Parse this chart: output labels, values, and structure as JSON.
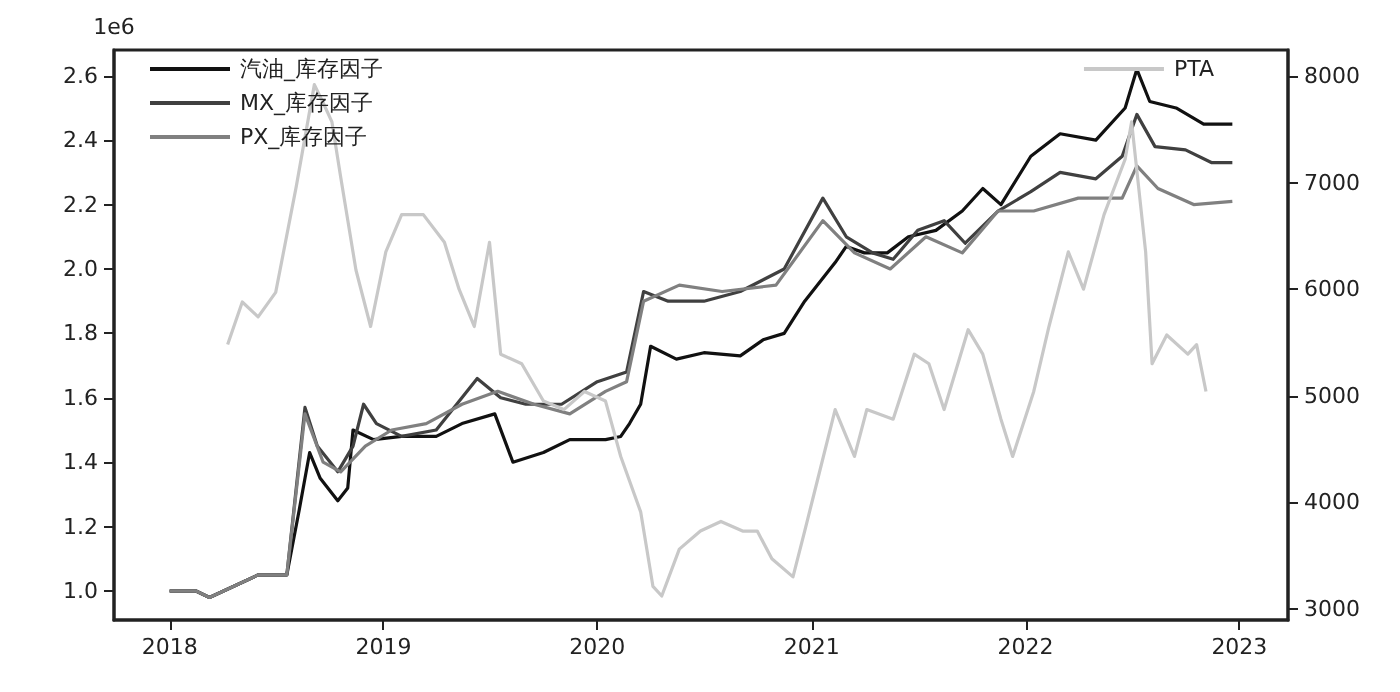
{
  "chart_data": {
    "type": "line",
    "ylabel": "1e6",
    "legend": "top",
    "grid": false,
    "line_style": "solid",
    "marker": "none",
    "xlim": [
      "2017-09-28",
      "2023-03-25"
    ],
    "xticks": [
      "2018",
      "2019",
      "2020",
      "2021",
      "2022",
      "2023"
    ],
    "ylim": [
      0.91,
      2.68
    ],
    "yticks": [
      {
        "value": 1,
        "label": "1.0"
      },
      1.2,
      1.4,
      1.6,
      1.8,
      {
        "value": 2,
        "label": "2.0"
      },
      2.2,
      2.4,
      2.6
    ],
    "y2lim": [
      2895,
      8245
    ],
    "y2ticks": [
      3000,
      4000,
      5000,
      6000,
      7000,
      8000
    ],
    "series": [
      {
        "name": "汽油_库存因子",
        "color": "#111111",
        "x": [
          "2018-01-01",
          "2018-02-15",
          "2018-03-10",
          "2018-04-15",
          "2018-06-01",
          "2018-07-20",
          "2018-08-10",
          "2018-08-28",
          "2018-09-15",
          "2018-10-15",
          "2018-11-01",
          "2018-11-10",
          "2018-12-15",
          "2019-02-01",
          "2019-04-01",
          "2019-05-15",
          "2019-07-10",
          "2019-08-10",
          "2019-10-01",
          "2019-11-15",
          "2020-01-15",
          "2020-02-10",
          "2020-02-25",
          "2020-03-15",
          "2020-04-01",
          "2020-05-15",
          "2020-07-01",
          "2020-09-01",
          "2020-10-10",
          "2020-11-15",
          "2020-12-20",
          "2021-02-10",
          "2021-03-01",
          "2021-04-01",
          "2021-05-10",
          "2021-06-15",
          "2021-08-01",
          "2021-09-15",
          "2021-10-20",
          "2021-11-20",
          "2022-01-10",
          "2022-03-01",
          "2022-05-01",
          "2022-06-20",
          "2022-07-10",
          "2022-08-01",
          "2022-09-15",
          "2022-11-01",
          "2022-12-20"
        ],
        "values": [
          1.0,
          1.0,
          0.98,
          1.01,
          1.05,
          1.05,
          1.25,
          1.43,
          1.35,
          1.28,
          1.32,
          1.5,
          1.47,
          1.48,
          1.48,
          1.52,
          1.55,
          1.4,
          1.43,
          1.47,
          1.47,
          1.48,
          1.52,
          1.58,
          1.76,
          1.72,
          1.74,
          1.73,
          1.78,
          1.8,
          1.9,
          2.02,
          2.07,
          2.05,
          2.05,
          2.1,
          2.12,
          2.18,
          2.25,
          2.2,
          2.35,
          2.42,
          2.4,
          2.5,
          2.62,
          2.52,
          2.5,
          2.45,
          2.45
        ]
      },
      {
        "name": "MX_库存因子",
        "color": "#404040",
        "x": [
          "2018-01-01",
          "2018-02-15",
          "2018-03-10",
          "2018-04-15",
          "2018-06-01",
          "2018-07-20",
          "2018-08-20",
          "2018-09-10",
          "2018-10-15",
          "2018-11-10",
          "2018-11-28",
          "2018-12-20",
          "2019-02-01",
          "2019-04-01",
          "2019-06-10",
          "2019-07-20",
          "2019-09-01",
          "2019-11-01",
          "2020-01-01",
          "2020-02-20",
          "2020-03-20",
          "2020-05-01",
          "2020-07-01",
          "2020-09-01",
          "2020-11-15",
          "2021-01-20",
          "2021-03-01",
          "2021-04-15",
          "2021-05-20",
          "2021-07-01",
          "2021-08-15",
          "2021-09-20",
          "2021-11-15",
          "2022-01-10",
          "2022-03-01",
          "2022-05-01",
          "2022-06-15",
          "2022-07-10",
          "2022-08-10",
          "2022-10-01",
          "2022-11-15",
          "2022-12-20"
        ],
        "values": [
          1.0,
          1.0,
          0.98,
          1.01,
          1.05,
          1.05,
          1.57,
          1.45,
          1.37,
          1.45,
          1.58,
          1.52,
          1.48,
          1.5,
          1.66,
          1.6,
          1.58,
          1.58,
          1.65,
          1.68,
          1.93,
          1.9,
          1.9,
          1.93,
          2.0,
          2.22,
          2.1,
          2.05,
          2.03,
          2.12,
          2.15,
          2.08,
          2.18,
          2.24,
          2.3,
          2.28,
          2.35,
          2.48,
          2.38,
          2.37,
          2.33,
          2.33
        ]
      },
      {
        "name": "PX_库存因子",
        "color": "#808080",
        "x": [
          "2018-01-01",
          "2018-02-15",
          "2018-03-10",
          "2018-04-15",
          "2018-06-01",
          "2018-07-20",
          "2018-08-20",
          "2018-09-20",
          "2018-10-20",
          "2018-12-01",
          "2019-01-15",
          "2019-03-15",
          "2019-05-15",
          "2019-07-15",
          "2019-09-15",
          "2019-11-15",
          "2020-01-15",
          "2020-02-20",
          "2020-03-20",
          "2020-05-20",
          "2020-08-01",
          "2020-11-01",
          "2021-01-20",
          "2021-03-15",
          "2021-05-15",
          "2021-07-15",
          "2021-09-15",
          "2021-11-15",
          "2022-01-15",
          "2022-04-01",
          "2022-06-15",
          "2022-07-10",
          "2022-08-15",
          "2022-10-15",
          "2022-12-20"
        ],
        "values": [
          1.0,
          1.0,
          0.98,
          1.01,
          1.05,
          1.05,
          1.55,
          1.4,
          1.37,
          1.45,
          1.5,
          1.52,
          1.58,
          1.62,
          1.58,
          1.55,
          1.62,
          1.65,
          1.9,
          1.95,
          1.93,
          1.95,
          2.15,
          2.05,
          2.0,
          2.1,
          2.05,
          2.18,
          2.18,
          2.22,
          2.22,
          2.32,
          2.25,
          2.2,
          2.21
        ]
      },
      {
        "name": "PTA",
        "color": "#c8c8c8",
        "axis": "y2",
        "x": [
          "2018-04-10",
          "2018-05-05",
          "2018-06-01",
          "2018-07-01",
          "2018-08-05",
          "2018-09-05",
          "2018-09-20",
          "2018-10-05",
          "2018-10-20",
          "2018-11-15",
          "2018-12-10",
          "2019-01-05",
          "2019-02-01",
          "2019-03-10",
          "2019-04-15",
          "2019-05-10",
          "2019-06-05",
          "2019-07-01",
          "2019-07-20",
          "2019-08-25",
          "2019-10-01",
          "2019-11-05",
          "2019-12-10",
          "2020-01-15",
          "2020-02-10",
          "2020-03-15",
          "2020-04-05",
          "2020-04-20",
          "2020-05-20",
          "2020-06-25",
          "2020-07-30",
          "2020-09-05",
          "2020-09-30",
          "2020-10-25",
          "2020-11-30",
          "2020-12-20",
          "2021-01-05",
          "2021-02-10",
          "2021-03-15",
          "2021-04-05",
          "2021-05-20",
          "2021-06-25",
          "2021-07-20",
          "2021-08-15",
          "2021-09-25",
          "2021-10-20",
          "2021-11-20",
          "2021-12-10",
          "2022-01-15",
          "2022-02-10",
          "2022-03-15",
          "2022-04-10",
          "2022-05-15",
          "2022-06-20",
          "2022-07-01",
          "2022-07-25",
          "2022-08-05",
          "2022-08-30",
          "2022-10-05",
          "2022-10-20",
          "2022-11-05"
        ],
        "values": [
          5480,
          5880,
          5740,
          5970,
          6960,
          7920,
          7750,
          7570,
          7050,
          6180,
          5650,
          6350,
          6700,
          6700,
          6440,
          6000,
          5650,
          6440,
          5390,
          5300,
          4950,
          4870,
          5040,
          4950,
          4430,
          3910,
          3210,
          3120,
          3560,
          3730,
          3820,
          3730,
          3730,
          3470,
          3300,
          3730,
          4080,
          4870,
          4430,
          4870,
          4780,
          5390,
          5300,
          4870,
          5620,
          5390,
          4780,
          4430,
          5040,
          5650,
          6350,
          6000,
          6700,
          7220,
          7570,
          6350,
          5300,
          5570,
          5390,
          5480,
          5040
        ]
      }
    ]
  }
}
